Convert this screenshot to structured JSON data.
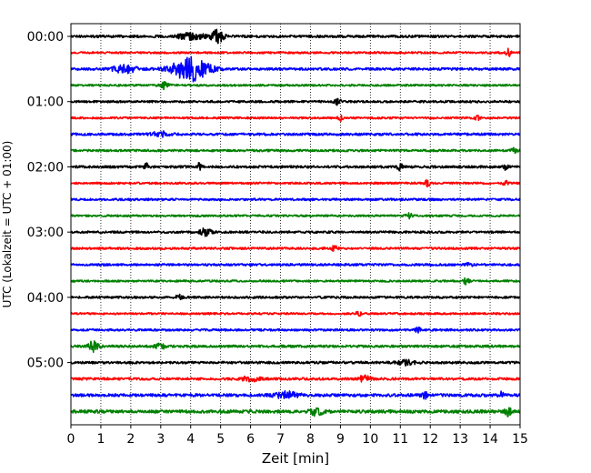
{
  "chart_data": {
    "type": "line",
    "title": "",
    "xlabel": "Zeit  [min]",
    "ylabel": "UTC (Lokalzeit = UTC + 01:00)",
    "xlim": [
      0,
      15
    ],
    "x_ticks": [
      "0",
      "1",
      "2",
      "3",
      "4",
      "5",
      "6",
      "7",
      "8",
      "9",
      "10",
      "11",
      "12",
      "13",
      "14",
      "15"
    ],
    "y_tick_labels": [
      "00:00",
      "01:00",
      "02:00",
      "03:00",
      "04:00",
      "05:00"
    ],
    "grid": "vertical dotted",
    "trace_interval_min": 15,
    "trace_colors": [
      "#000000",
      "#ff0000",
      "#0000ff",
      "#008000"
    ],
    "traces": [
      {
        "start": "00:00",
        "color": "#000000",
        "base_amplitude": 1.0,
        "events": [
          {
            "t": 4.0,
            "a": 2.5,
            "w": 0.5
          },
          {
            "t": 4.9,
            "a": 5.0,
            "w": 0.2
          }
        ]
      },
      {
        "start": "00:15",
        "color": "#ff0000",
        "base_amplitude": 0.8,
        "events": [
          {
            "t": 14.6,
            "a": 3.0,
            "w": 0.1
          }
        ]
      },
      {
        "start": "00:30",
        "color": "#0000ff",
        "base_amplitude": 1.0,
        "events": [
          {
            "t": 4.0,
            "a": 10.0,
            "w": 0.6
          },
          {
            "t": 1.8,
            "a": 3.0,
            "w": 0.4
          }
        ]
      },
      {
        "start": "00:45",
        "color": "#008000",
        "base_amplitude": 0.8,
        "events": [
          {
            "t": 3.1,
            "a": 3.0,
            "w": 0.15
          }
        ]
      },
      {
        "start": "01:00",
        "color": "#000000",
        "base_amplitude": 0.9,
        "events": [
          {
            "t": 8.9,
            "a": 2.5,
            "w": 0.1
          }
        ]
      },
      {
        "start": "01:15",
        "color": "#ff0000",
        "base_amplitude": 0.8,
        "events": [
          {
            "t": 9.0,
            "a": 2.0,
            "w": 0.1
          },
          {
            "t": 13.6,
            "a": 2.0,
            "w": 0.1
          }
        ]
      },
      {
        "start": "01:30",
        "color": "#0000ff",
        "base_amplitude": 1.0,
        "events": [
          {
            "t": 3.0,
            "a": 2.0,
            "w": 0.3
          }
        ]
      },
      {
        "start": "01:45",
        "color": "#008000",
        "base_amplitude": 0.9,
        "events": [
          {
            "t": 14.8,
            "a": 2.0,
            "w": 0.1
          }
        ]
      },
      {
        "start": "02:00",
        "color": "#000000",
        "base_amplitude": 1.0,
        "events": [
          {
            "t": 2.5,
            "a": 3.5,
            "w": 0.06
          },
          {
            "t": 4.3,
            "a": 4.5,
            "w": 0.06
          },
          {
            "t": 11.0,
            "a": 2.5,
            "w": 0.1
          },
          {
            "t": 14.5,
            "a": 3.0,
            "w": 0.08
          }
        ]
      },
      {
        "start": "02:15",
        "color": "#ff0000",
        "base_amplitude": 0.8,
        "events": [
          {
            "t": 11.9,
            "a": 2.5,
            "w": 0.1
          },
          {
            "t": 14.5,
            "a": 2.0,
            "w": 0.1
          }
        ]
      },
      {
        "start": "02:30",
        "color": "#0000ff",
        "base_amplitude": 0.9,
        "events": []
      },
      {
        "start": "02:45",
        "color": "#008000",
        "base_amplitude": 0.8,
        "events": [
          {
            "t": 11.3,
            "a": 2.0,
            "w": 0.1
          }
        ]
      },
      {
        "start": "03:00",
        "color": "#000000",
        "base_amplitude": 0.9,
        "events": [
          {
            "t": 4.5,
            "a": 3.0,
            "w": 0.2
          }
        ]
      },
      {
        "start": "03:15",
        "color": "#ff0000",
        "base_amplitude": 0.9,
        "events": [
          {
            "t": 8.8,
            "a": 2.0,
            "w": 0.1
          }
        ]
      },
      {
        "start": "03:30",
        "color": "#0000ff",
        "base_amplitude": 0.9,
        "events": [
          {
            "t": 13.3,
            "a": 2.0,
            "w": 0.1
          }
        ]
      },
      {
        "start": "03:45",
        "color": "#008000",
        "base_amplitude": 0.8,
        "events": [
          {
            "t": 13.2,
            "a": 2.5,
            "w": 0.1
          }
        ]
      },
      {
        "start": "04:00",
        "color": "#000000",
        "base_amplitude": 0.9,
        "events": [
          {
            "t": 3.6,
            "a": 2.0,
            "w": 0.1
          }
        ]
      },
      {
        "start": "04:15",
        "color": "#ff0000",
        "base_amplitude": 0.8,
        "events": [
          {
            "t": 9.6,
            "a": 2.5,
            "w": 0.08
          }
        ]
      },
      {
        "start": "04:30",
        "color": "#0000ff",
        "base_amplitude": 0.9,
        "events": [
          {
            "t": 11.6,
            "a": 2.0,
            "w": 0.1
          }
        ]
      },
      {
        "start": "04:45",
        "color": "#008000",
        "base_amplitude": 1.0,
        "events": [
          {
            "t": 0.75,
            "a": 4.5,
            "w": 0.15
          },
          {
            "t": 3.0,
            "a": 2.0,
            "w": 0.2
          }
        ]
      },
      {
        "start": "05:00",
        "color": "#000000",
        "base_amplitude": 1.0,
        "events": [
          {
            "t": 11.2,
            "a": 2.0,
            "w": 0.3
          }
        ]
      },
      {
        "start": "05:15",
        "color": "#ff0000",
        "base_amplitude": 1.0,
        "events": [
          {
            "t": 6.0,
            "a": 2.0,
            "w": 0.3
          },
          {
            "t": 9.8,
            "a": 2.5,
            "w": 0.2
          }
        ]
      },
      {
        "start": "05:30",
        "color": "#0000ff",
        "base_amplitude": 1.2,
        "events": [
          {
            "t": 7.2,
            "a": 2.5,
            "w": 0.4
          },
          {
            "t": 11.8,
            "a": 3.0,
            "w": 0.1
          },
          {
            "t": 14.4,
            "a": 2.5,
            "w": 0.1
          }
        ]
      },
      {
        "start": "05:45",
        "color": "#008000",
        "base_amplitude": 1.3,
        "events": [
          {
            "t": 8.2,
            "a": 3.0,
            "w": 0.2
          },
          {
            "t": 14.6,
            "a": 3.5,
            "w": 0.1
          }
        ]
      }
    ]
  }
}
